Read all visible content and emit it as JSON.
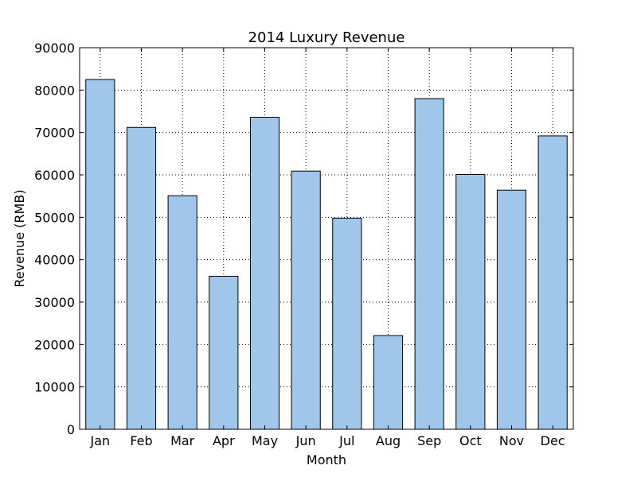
{
  "chart_data": {
    "type": "bar",
    "title": "2014 Luxury Revenue",
    "xlabel": "Month",
    "ylabel": "Revenue (RMB)",
    "categories": [
      "Jan",
      "Feb",
      "Mar",
      "Apr",
      "May",
      "Jun",
      "Jul",
      "Aug",
      "Sep",
      "Oct",
      "Nov",
      "Dec"
    ],
    "values": [
      82500,
      71200,
      55100,
      36100,
      73600,
      60900,
      49800,
      22100,
      78000,
      60100,
      56400,
      69200
    ],
    "ylim": [
      0,
      90000
    ],
    "yticks": [
      0,
      10000,
      20000,
      30000,
      40000,
      50000,
      60000,
      70000,
      80000,
      90000
    ],
    "grid": true,
    "bar_color": "#a1c6ec",
    "edge_color": "#000000"
  }
}
